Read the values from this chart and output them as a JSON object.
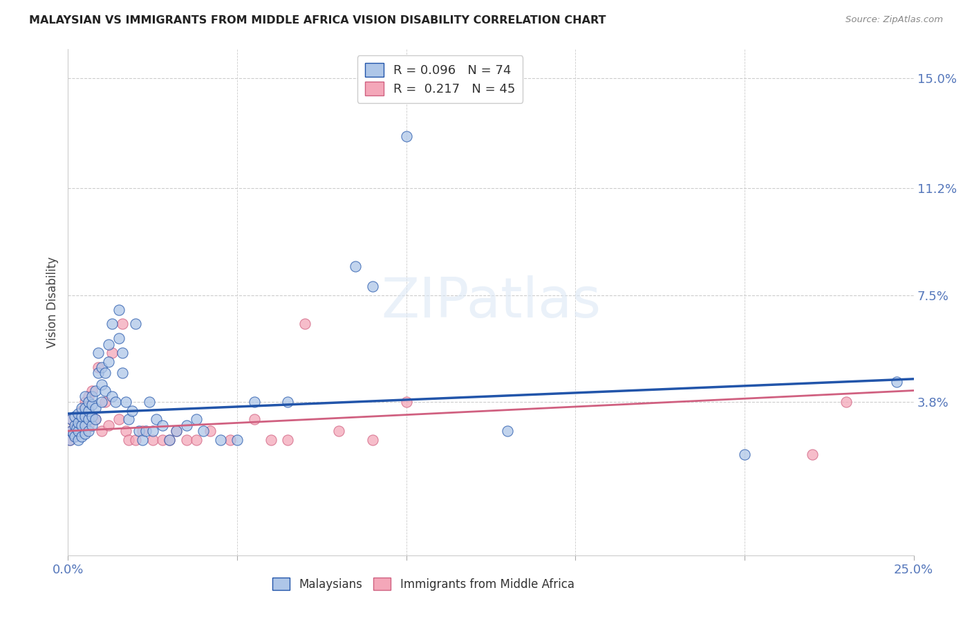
{
  "title": "MALAYSIAN VS IMMIGRANTS FROM MIDDLE AFRICA VISION DISABILITY CORRELATION CHART",
  "source": "Source: ZipAtlas.com",
  "ylabel": "Vision Disability",
  "xlim": [
    0.0,
    0.25
  ],
  "ylim": [
    -0.015,
    0.16
  ],
  "ytick_right_labels": [
    "15.0%",
    "11.2%",
    "7.5%",
    "3.8%"
  ],
  "ytick_right_values": [
    0.15,
    0.112,
    0.075,
    0.038
  ],
  "grid_color": "#cccccc",
  "background_color": "#ffffff",
  "legend_r_blue": "0.096",
  "legend_n_blue": "74",
  "legend_r_pink": "0.217",
  "legend_n_pink": "45",
  "blue_color": "#aec6e8",
  "pink_color": "#f4a7b9",
  "line_blue_color": "#2255aa",
  "line_pink_color": "#d06080",
  "blue_trend": [
    0.034,
    0.046
  ],
  "pink_trend": [
    0.028,
    0.042
  ],
  "malaysians_x": [
    0.0005,
    0.001,
    0.001,
    0.0015,
    0.002,
    0.002,
    0.002,
    0.0025,
    0.003,
    0.003,
    0.003,
    0.003,
    0.004,
    0.004,
    0.004,
    0.004,
    0.005,
    0.005,
    0.005,
    0.005,
    0.005,
    0.006,
    0.006,
    0.006,
    0.006,
    0.007,
    0.007,
    0.007,
    0.007,
    0.008,
    0.008,
    0.008,
    0.009,
    0.009,
    0.01,
    0.01,
    0.01,
    0.011,
    0.011,
    0.012,
    0.012,
    0.013,
    0.013,
    0.014,
    0.015,
    0.015,
    0.016,
    0.016,
    0.017,
    0.018,
    0.019,
    0.02,
    0.021,
    0.022,
    0.023,
    0.024,
    0.025,
    0.026,
    0.028,
    0.03,
    0.032,
    0.035,
    0.038,
    0.04,
    0.045,
    0.05,
    0.055,
    0.065,
    0.085,
    0.09,
    0.1,
    0.13,
    0.2,
    0.245
  ],
  "malaysians_y": [
    0.025,
    0.028,
    0.032,
    0.027,
    0.026,
    0.03,
    0.033,
    0.029,
    0.025,
    0.028,
    0.031,
    0.034,
    0.026,
    0.03,
    0.033,
    0.036,
    0.027,
    0.03,
    0.033,
    0.036,
    0.04,
    0.028,
    0.032,
    0.035,
    0.038,
    0.03,
    0.033,
    0.037,
    0.04,
    0.032,
    0.036,
    0.042,
    0.048,
    0.055,
    0.038,
    0.044,
    0.05,
    0.042,
    0.048,
    0.052,
    0.058,
    0.04,
    0.065,
    0.038,
    0.06,
    0.07,
    0.048,
    0.055,
    0.038,
    0.032,
    0.035,
    0.065,
    0.028,
    0.025,
    0.028,
    0.038,
    0.028,
    0.032,
    0.03,
    0.025,
    0.028,
    0.03,
    0.032,
    0.028,
    0.025,
    0.025,
    0.038,
    0.038,
    0.085,
    0.078,
    0.13,
    0.028,
    0.02,
    0.045
  ],
  "immigrants_x": [
    0.0005,
    0.001,
    0.001,
    0.0015,
    0.002,
    0.002,
    0.003,
    0.003,
    0.004,
    0.004,
    0.005,
    0.005,
    0.006,
    0.006,
    0.007,
    0.007,
    0.008,
    0.009,
    0.01,
    0.011,
    0.012,
    0.013,
    0.015,
    0.016,
    0.017,
    0.018,
    0.02,
    0.022,
    0.025,
    0.028,
    0.03,
    0.032,
    0.035,
    0.038,
    0.042,
    0.048,
    0.055,
    0.06,
    0.065,
    0.07,
    0.08,
    0.09,
    0.1,
    0.22,
    0.23
  ],
  "immigrants_y": [
    0.025,
    0.028,
    0.032,
    0.027,
    0.026,
    0.03,
    0.028,
    0.033,
    0.03,
    0.035,
    0.028,
    0.038,
    0.03,
    0.04,
    0.033,
    0.042,
    0.032,
    0.05,
    0.028,
    0.038,
    0.03,
    0.055,
    0.032,
    0.065,
    0.028,
    0.025,
    0.025,
    0.028,
    0.025,
    0.025,
    0.025,
    0.028,
    0.025,
    0.025,
    0.028,
    0.025,
    0.032,
    0.025,
    0.025,
    0.065,
    0.028,
    0.025,
    0.038,
    0.02,
    0.038
  ]
}
